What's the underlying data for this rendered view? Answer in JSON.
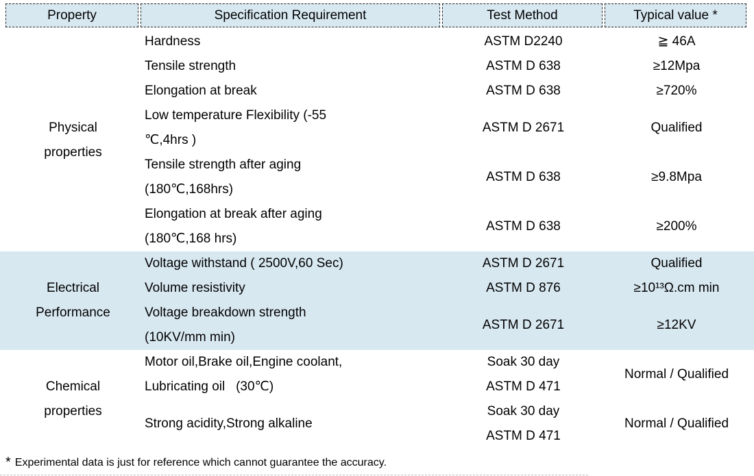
{
  "table": {
    "columns": [
      "Property",
      "Specification Requirement",
      "Test Method",
      "Typical value *"
    ],
    "sections": [
      {
        "property": "Physical\nproperties",
        "rows": [
          {
            "spec": "Hardness",
            "method": "ASTM D2240",
            "value": "≧ 46A"
          },
          {
            "spec": "Tensile strength",
            "method": "ASTM D 638",
            "value": "≥12Mpa"
          },
          {
            "spec": "Elongation at break",
            "method": "ASTM D 638",
            "value": "≥720%"
          },
          {
            "spec": "Low temperature Flexibility (-55\n℃,4hrs )",
            "method": "ASTM D 2671",
            "value": "Qualified"
          },
          {
            "spec": "Tensile strength after aging\n(180℃,168hrs)",
            "method": "ASTM D 638",
            "value": "≥9.8Mpa"
          },
          {
            "spec": "Elongation at break after aging\n(180℃,168 hrs)",
            "method": "ASTM D 638",
            "value": "≥200%"
          }
        ]
      },
      {
        "property": "Electrical\nPerformance",
        "rows": [
          {
            "spec": "Voltage withstand ( 2500V,60 Sec)",
            "method": "ASTM D 2671",
            "value": "Qualified"
          },
          {
            "spec": "Volume resistivity",
            "method": "ASTM D 876",
            "value": "≥10¹³Ω.cm min"
          },
          {
            "spec": "Voltage breakdown strength\n(10KV/mm min)",
            "method": "ASTM D 2671",
            "value": "≥12KV"
          }
        ]
      },
      {
        "property": "Chemical\nproperties",
        "rows": [
          {
            "spec": "Motor oil,Brake oil,Engine coolant,\nLubricating oil   (30℃)",
            "method": "Soak 30 day\nASTM D 471",
            "value": "Normal / Qualified"
          },
          {
            "spec": "Strong acidity,Strong alkaline",
            "method": "Soak 30 day\nASTM D 471",
            "value": "Normal / Qualified"
          }
        ]
      }
    ]
  },
  "footnote": {
    "marker": "*",
    "text": "Experimental data is just for reference which cannot guarantee the accuracy."
  },
  "colors": {
    "highlight_blue": "#d8e8f1",
    "border": "#222222",
    "text": "#000000"
  }
}
